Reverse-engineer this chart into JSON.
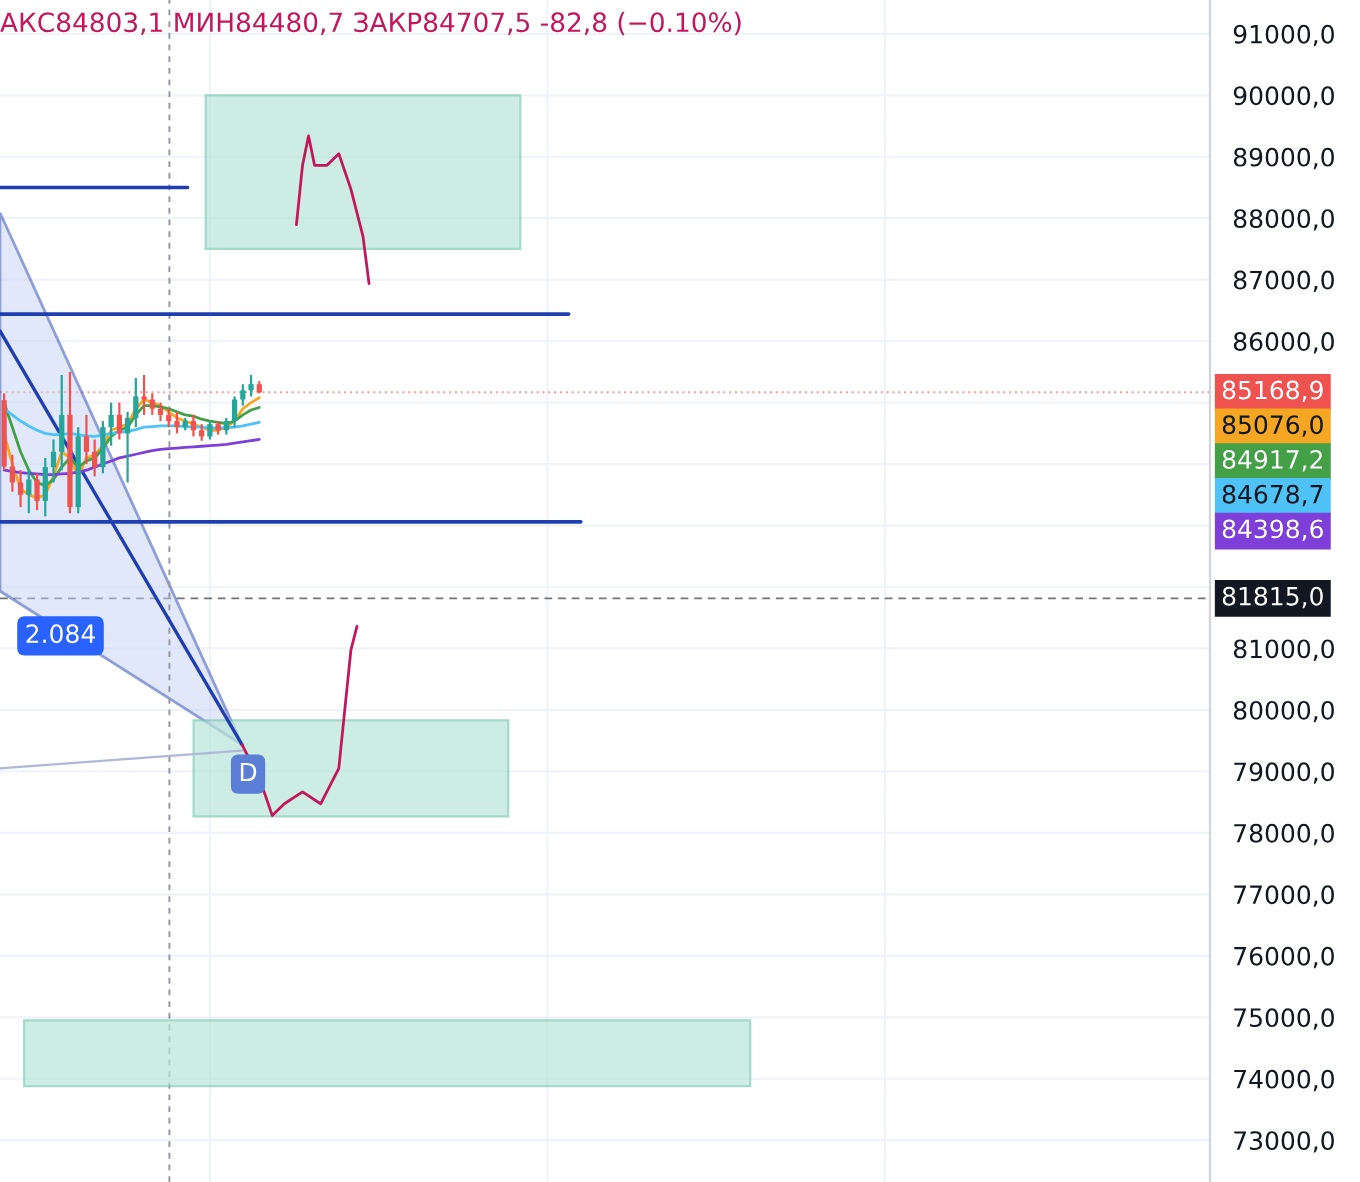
{
  "chart_data": {
    "type": "candlestick",
    "title": "АКС84803,1 МИН84480,7 ЗАКР84707,5 -82,8 (−0.10%)",
    "categories": [
      null,
      null,
      null,
      null,
      null,
      null,
      null,
      null,
      null,
      null,
      null,
      null,
      null,
      null,
      null,
      null,
      null,
      null,
      null,
      null,
      null,
      null,
      null,
      null,
      null,
      null,
      null,
      null,
      null,
      null,
      null,
      null,
      null,
      null,
      null,
      null,
      null,
      null,
      null,
      null,
      null,
      null,
      null,
      null,
      null,
      null,
      null,
      null,
      null,
      null,
      null,
      null,
      null,
      null,
      null,
      null,
      null,
      null,
      null,
      null,
      null,
      null,
      null,
      null,
      null,
      null,
      null,
      null,
      null,
      null,
      null,
      null,
      null,
      null,
      null,
      null,
      null,
      null,
      null,
      null,
      null,
      null,
      null,
      null,
      null,
      null,
      null,
      null,
      null,
      null,
      null,
      null,
      null,
      null,
      null,
      null,
      null,
      null,
      null,
      null,
      null,
      null,
      null,
      null,
      null,
      null,
      null,
      null,
      null,
      null,
      null,
      null,
      null,
      null,
      null,
      null,
      null,
      null,
      null,
      null,
      null,
      null,
      null,
      null,
      null,
      null,
      null,
      null,
      null,
      null,
      null,
      null,
      null,
      null,
      null,
      null,
      null,
      null,
      null,
      null,
      null,
      null,
      null,
      null,
      null,
      null,
      null
    ],
    "ohlc": [
      [
        85040,
        85150,
        83900,
        83960
      ],
      [
        83960,
        84150,
        83550,
        83700
      ],
      [
        83700,
        83900,
        83300,
        83500
      ],
      [
        83500,
        83900,
        83200,
        83750
      ],
      [
        83750,
        83850,
        83250,
        83400
      ],
      [
        83400,
        84100,
        83150,
        83950
      ],
      [
        83950,
        84400,
        83700,
        84200
      ],
      [
        84200,
        85450,
        83900,
        84800
      ],
      [
        84800,
        85500,
        83200,
        83300
      ],
      [
        83300,
        84600,
        83200,
        84450
      ],
      [
        84450,
        84800,
        84000,
        84200
      ],
      [
        84200,
        84400,
        83800,
        83950
      ],
      [
        83950,
        84700,
        83850,
        84600
      ],
      [
        84600,
        85000,
        84300,
        84800
      ],
      [
        84800,
        85000,
        84400,
        84500
      ],
      [
        84500,
        84850,
        83700,
        84750
      ],
      [
        84750,
        85400,
        84600,
        85100
      ],
      [
        85100,
        85450,
        84800,
        85050
      ],
      [
        85050,
        85150,
        84800,
        84900
      ],
      [
        84900,
        85000,
        84700,
        84800
      ],
      [
        84800,
        84900,
        84600,
        84700
      ],
      [
        84700,
        84850,
        84500,
        84600
      ],
      [
        84600,
        84750,
        84550,
        84700
      ],
      [
        84700,
        84800,
        84450,
        84550
      ],
      [
        84550,
        84650,
        84380,
        84450
      ],
      [
        84450,
        84700,
        84400,
        84650
      ],
      [
        84650,
        84700,
        84480,
        84550
      ],
      [
        84550,
        84750,
        84480,
        84700
      ],
      [
        84700,
        85100,
        84600,
        85050
      ],
      [
        85050,
        85300,
        84950,
        85200
      ],
      [
        85200,
        85450,
        85100,
        85300
      ],
      [
        85300,
        85350,
        85150,
        85170
      ],
      null,
      null,
      null,
      null,
      null,
      null,
      null,
      null,
      null,
      null,
      null,
      null,
      null,
      null,
      null,
      null,
      null,
      null,
      null,
      null,
      null,
      null,
      null,
      null,
      null,
      null,
      null,
      null,
      null,
      null,
      null,
      null,
      null,
      null,
      null,
      null,
      null,
      null,
      null,
      null,
      null,
      null,
      null,
      null,
      null,
      null,
      null,
      null,
      null,
      null,
      null,
      null,
      null,
      null,
      null,
      null,
      null,
      null,
      null,
      null,
      null,
      null,
      null,
      null,
      null,
      null,
      null,
      null,
      null,
      null,
      null,
      null,
      null,
      null,
      null,
      null,
      null,
      null,
      null,
      null,
      null,
      null,
      null,
      null,
      null,
      null,
      null,
      null,
      null,
      null,
      null,
      null,
      null,
      null,
      null,
      null,
      null,
      null,
      null,
      null,
      null,
      null,
      null,
      null,
      null,
      null,
      null,
      null,
      null,
      null,
      null,
      null,
      null,
      null,
      null
    ],
    "series": [
      {
        "type": "line",
        "color": "#f5a623",
        "values": [
          84500,
          84000,
          83600,
          83500,
          83450,
          83500,
          83800,
          84200,
          84100,
          83800,
          84100,
          84150,
          84300,
          84550,
          84600,
          84650,
          84900,
          85050,
          85000,
          84950,
          84850,
          84750,
          84700,
          84650,
          84600,
          84550,
          84550,
          84600,
          84700,
          84900,
          85000,
          85080,
          null,
          null,
          null,
          null,
          null,
          null,
          null,
          null,
          null,
          null,
          null,
          null,
          null,
          null,
          null,
          null,
          null,
          null,
          null,
          null,
          null,
          null,
          null,
          null,
          null,
          null,
          null,
          null,
          null,
          null,
          null,
          null,
          null,
          null,
          null,
          null,
          null,
          null,
          null,
          null,
          null,
          null,
          null,
          null,
          null,
          null,
          null,
          null,
          null,
          null,
          null,
          null,
          null,
          null,
          null,
          null,
          null,
          null,
          null,
          null,
          null,
          null,
          null,
          null,
          null,
          null,
          null,
          null,
          null,
          null,
          null,
          null,
          null,
          null,
          null,
          null,
          null,
          null,
          null,
          null,
          null,
          null,
          null,
          null,
          null,
          null,
          null,
          null,
          null,
          null,
          null,
          null,
          null,
          null,
          null,
          null,
          null,
          null,
          null,
          null,
          null,
          null,
          null,
          null,
          null,
          null,
          null,
          null,
          null,
          null,
          null,
          null,
          null,
          null,
          null
        ]
      },
      {
        "type": "line",
        "color": "#43a047",
        "values": [
          85000,
          84600,
          84200,
          83900,
          83700,
          83650,
          83750,
          83950,
          84100,
          83950,
          84050,
          84100,
          84250,
          84450,
          84550,
          84600,
          84800,
          84950,
          84950,
          84930,
          84900,
          84850,
          84800,
          84780,
          84730,
          84700,
          84680,
          84660,
          84700,
          84800,
          84880,
          84920,
          null,
          null,
          null,
          null,
          null,
          null,
          null,
          null,
          null,
          null,
          null,
          null,
          null,
          null,
          null,
          null,
          null,
          null,
          null,
          null,
          null,
          null,
          null,
          null,
          null,
          null,
          null,
          null,
          null,
          null,
          null,
          null,
          null,
          null,
          null,
          null,
          null,
          null,
          null,
          null,
          null,
          null,
          null,
          null,
          null,
          null,
          null,
          null,
          null,
          null,
          null,
          null,
          null,
          null,
          null,
          null,
          null,
          null,
          null,
          null,
          null,
          null,
          null,
          null,
          null,
          null,
          null,
          null,
          null,
          null,
          null,
          null,
          null,
          null,
          null,
          null,
          null,
          null,
          null,
          null,
          null,
          null,
          null,
          null,
          null,
          null,
          null,
          null,
          null,
          null,
          null,
          null,
          null,
          null,
          null,
          null,
          null,
          null,
          null,
          null,
          null,
          null,
          null,
          null,
          null,
          null,
          null,
          null,
          null,
          null,
          null,
          null,
          null,
          null,
          null
        ]
      },
      {
        "type": "line",
        "color": "#4fc3f7",
        "values": [
          84900,
          84800,
          84700,
          84620,
          84550,
          84500,
          84480,
          84480,
          84500,
          84480,
          84460,
          84450,
          84470,
          84500,
          84520,
          84530,
          84560,
          84600,
          84610,
          84620,
          84620,
          84620,
          84610,
          84600,
          84600,
          84590,
          84590,
          84590,
          84600,
          84620,
          84650,
          84680,
          null,
          null,
          null,
          null,
          null,
          null,
          null,
          null,
          null,
          null,
          null,
          null,
          null,
          null,
          null,
          null,
          null,
          null,
          null,
          null,
          null,
          null,
          null,
          null,
          null,
          null,
          null,
          null,
          null,
          null,
          null,
          null,
          null,
          null,
          null,
          null,
          null,
          null,
          null,
          null,
          null,
          null,
          null,
          null,
          null,
          null,
          null,
          null,
          null,
          null,
          null,
          null,
          null,
          null,
          null,
          null,
          null,
          null,
          null,
          null,
          null,
          null,
          null,
          null,
          null,
          null,
          null,
          null,
          null,
          null,
          null,
          null,
          null,
          null,
          null,
          null,
          null,
          null,
          null,
          null,
          null,
          null,
          null,
          null,
          null,
          null,
          null,
          null,
          null,
          null,
          null,
          null,
          null,
          null,
          null,
          null,
          null,
          null,
          null,
          null,
          null,
          null,
          null,
          null,
          null,
          null,
          null,
          null,
          null,
          null,
          null,
          null,
          null,
          null,
          null
        ]
      },
      {
        "type": "line",
        "color": "#7e3fd8",
        "values": [
          83900,
          83880,
          83860,
          83850,
          83840,
          83830,
          83830,
          83840,
          83850,
          83870,
          83900,
          83950,
          84000,
          84050,
          84100,
          84130,
          84160,
          84190,
          84220,
          84240,
          84250,
          84260,
          84270,
          84280,
          84290,
          84300,
          84310,
          84320,
          84340,
          84360,
          84380,
          84400,
          null,
          null,
          null,
          null,
          null,
          null,
          null,
          null,
          null,
          null,
          null,
          null,
          null,
          null,
          null,
          null,
          null,
          null,
          null,
          null,
          null,
          null,
          null,
          null,
          null,
          null,
          null,
          null,
          null,
          null,
          null,
          null,
          null,
          null,
          null,
          null,
          null,
          null,
          null,
          null,
          null,
          null,
          null,
          null,
          null,
          null,
          null,
          null,
          null,
          null,
          null,
          null,
          null,
          null,
          null,
          null,
          null,
          null,
          null,
          null,
          null,
          null,
          null,
          null,
          null,
          null,
          null,
          null,
          null,
          null,
          null,
          null,
          null,
          null,
          null,
          null,
          null,
          null,
          null,
          null,
          null,
          null,
          null,
          null,
          null,
          null,
          null,
          null,
          null,
          null,
          null,
          null,
          null,
          null,
          null,
          null,
          null,
          null,
          null,
          null,
          null,
          null,
          null,
          null,
          null,
          null,
          null,
          null,
          null,
          null,
          null,
          null,
          null,
          null,
          null
        ]
      }
    ],
    "ylim": [
      72320,
      91550
    ],
    "yticks": [
      {
        "value": 73000,
        "label": "73000,0"
      },
      {
        "value": 74000,
        "label": "74000,0"
      },
      {
        "value": 75000,
        "label": "75000,0"
      },
      {
        "value": 76000,
        "label": "76000,0"
      },
      {
        "value": 77000,
        "label": "77000,0"
      },
      {
        "value": 78000,
        "label": "78000,0"
      },
      {
        "value": 79000,
        "label": "79000,0"
      },
      {
        "value": 80000,
        "label": "80000,0"
      },
      {
        "value": 81000,
        "label": "81000,0"
      },
      {
        "value": 82000,
        "label": null
      },
      {
        "value": 83000,
        "label": null
      },
      {
        "value": 84000,
        "label": null
      },
      {
        "value": 85000,
        "label": null
      },
      {
        "value": 86000,
        "label": "86000,0"
      },
      {
        "value": 87000,
        "label": "87000,0"
      },
      {
        "value": 88000,
        "label": "88000,0"
      },
      {
        "value": 89000,
        "label": "89000,0"
      },
      {
        "value": 90000,
        "label": "90000,0"
      },
      {
        "value": 91000,
        "label": "91000,0"
      }
    ],
    "ref_lines": [
      {
        "axis": "y",
        "value": 88500,
        "color": "#1f3fb0",
        "line_style": "solid"
      },
      {
        "axis": "y",
        "value": 86440,
        "color": "#1f3fb0",
        "line_style": "solid"
      },
      {
        "axis": "y",
        "value": 83060,
        "color": "#1f3fb0",
        "line_style": "solid"
      },
      {
        "axis": "y",
        "value": 85168.9,
        "label": "85168,9",
        "color": "#ef5350",
        "line_style": "dotted"
      },
      {
        "axis": "y",
        "value": 81815,
        "label": "81815,0",
        "color": "#131722",
        "line_style": "dashed"
      }
    ],
    "bands": [
      {
        "axis": "y",
        "from": 87500,
        "to": 90000,
        "color": "#b9e4d9"
      },
      {
        "axis": "y",
        "from": 78270,
        "to": 79830,
        "color": "#b9e4d9"
      },
      {
        "axis": "y",
        "from": 73880,
        "to": 74950,
        "color": "#b9e4d9"
      }
    ],
    "annotations": [
      "85076,0",
      "84917,2",
      "84678,7",
      "84398,6",
      "2.084",
      "D"
    ],
    "grid": true
  }
}
